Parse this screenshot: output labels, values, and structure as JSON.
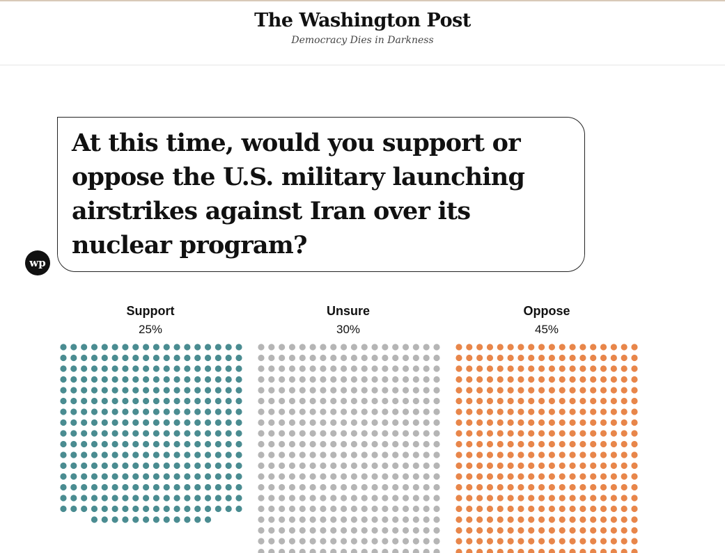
{
  "masthead": {
    "logo": "The Washington Post",
    "tagline": "Democracy Dies in Darkness"
  },
  "question": "At this time, would you support or oppose the U.S. military launching airstrikes against Iran over its nuclear program?",
  "badge": "wp",
  "chart_data": {
    "type": "waffle",
    "categories": [
      "Support",
      "Unsure",
      "Oppose"
    ],
    "values": [
      25,
      30,
      45
    ],
    "value_labels": [
      "25%",
      "30%",
      "45%"
    ],
    "colors": [
      "#4a8c91",
      "#b5b5b5",
      "#e8864a"
    ],
    "unit": "%"
  }
}
